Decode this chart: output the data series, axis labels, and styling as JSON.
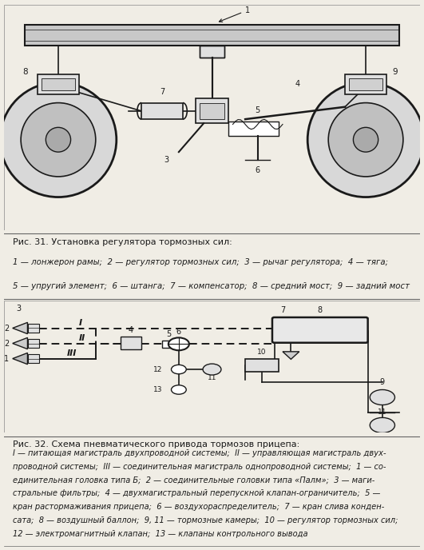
{
  "bg_color": "#f0ede5",
  "fig_width": 5.31,
  "fig_height": 6.88,
  "dpi": 100,
  "caption1_title": "Рис. 31. Установка регулятора тормозных сил:",
  "caption1_line1": "1 — лонжерон рамы;  2 — регулятор тормозных сил;  3 — рычаг регулятора;  4 — тяга;",
  "caption1_line2": "5 — упругий элемент;  6 — штанга;  7 — компенсатор;  8 — средний мост;  9 — задний мост",
  "caption2_title": "Рис. 32. Схема пневматического привода тормозов прицепа:",
  "caption2_lines": [
    "I — питающая магистраль двухпроводной системы;  II — управляющая магистраль двух-",
    "проводной системы;  III — соединительная магистраль однопроводной системы;  1 — со-",
    "единительная головка типа Б;  2 — соединительные головки типа «Палм»;  3 — маги-",
    "стральные фильтры;  4 — двухмагистральный перепускной клапан-ограничитель;  5 —",
    "кран растормаживания прицепа;  6 — воздухораспределитель;  7 — кран слива конден-",
    "сата;  8 — воздушный баллон;  9, 11 — тормозные камеры;  10 — регулятор тормозных сил;",
    "12 — электромагнитный клапан;  13 — клапаны контрольного вывода"
  ],
  "lc": "#1a1a1a",
  "diagram_bg": "#ffffff",
  "drum_outer": "#d8d8d8",
  "drum_inner": "#c0c0c0",
  "chassis_fill": "#c8c8c8",
  "component_fill": "#e0e0e0",
  "tank_fill": "#e8e8e8"
}
